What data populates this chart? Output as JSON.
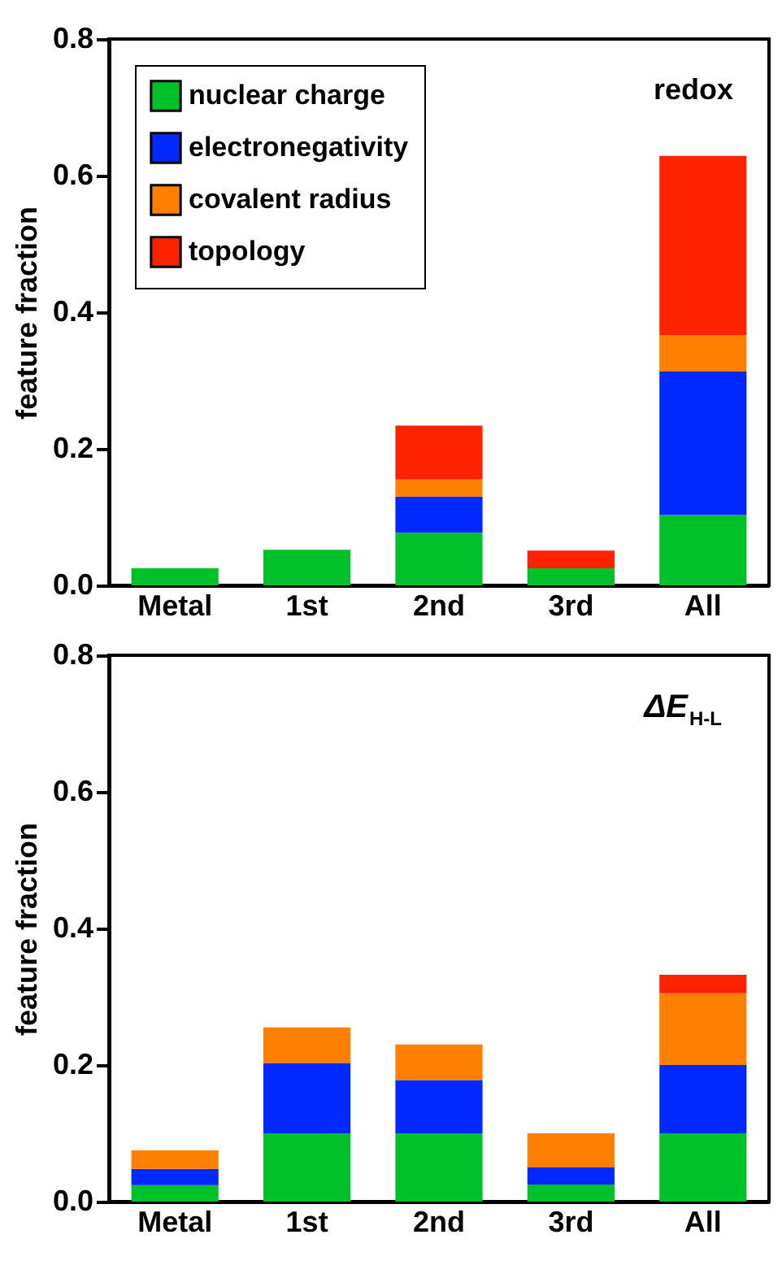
{
  "chart_data": [
    {
      "type": "bar",
      "stacked": true,
      "categories": [
        "Metal",
        "1st",
        "2nd",
        "3rd",
        "All"
      ],
      "ylabel": "feature fraction",
      "annotations": [
        "redox"
      ],
      "ylim": [
        0,
        0.8
      ],
      "yticks": [
        {
          "value": 0,
          "label": "0.0"
        },
        {
          "value": 0.2,
          "label": "0.2"
        },
        {
          "value": 0.4,
          "label": "0.4"
        },
        {
          "value": 0.6,
          "label": "0.6"
        },
        {
          "value": 0.8,
          "label": "0.8"
        }
      ],
      "legend": "top left",
      "series": [
        {
          "name": "nuclear charge",
          "color": "#00c12a",
          "values": [
            0.025,
            0.052,
            0.077,
            0.025,
            0.103
          ]
        },
        {
          "name": "electronegativity",
          "color": "#0029ff",
          "values": [
            0,
            0,
            0.053,
            0,
            0.21
          ]
        },
        {
          "name": "covalent radius",
          "color": "#ff7f00",
          "values": [
            0,
            0,
            0.025,
            0,
            0.053
          ]
        },
        {
          "name": "topology",
          "color": "#ff2200",
          "values": [
            0,
            0,
            0.079,
            0.026,
            0.263
          ]
        }
      ]
    },
    {
      "type": "bar",
      "stacked": true,
      "categories": [
        "Metal",
        "1st",
        "2nd",
        "3rd",
        "All"
      ],
      "ylabel": "feature fraction",
      "annotations": [
        "ΔE$_{H-L}$"
      ],
      "ylim": [
        0,
        0.8
      ],
      "yticks": [
        {
          "value": 0,
          "label": "0.0"
        },
        {
          "value": 0.2,
          "label": "0.2"
        },
        {
          "value": 0.4,
          "label": "0.4"
        },
        {
          "value": 0.6,
          "label": "0.6"
        },
        {
          "value": 0.8,
          "label": "0.8"
        }
      ],
      "series": [
        {
          "color": "#00c12a",
          "values": [
            0.024,
            0.1,
            0.1,
            0.025,
            0.1
          ]
        },
        {
          "color": "#0029ff",
          "values": [
            0.024,
            0.103,
            0.078,
            0.025,
            0.1
          ]
        },
        {
          "color": "#ff7f00",
          "values": [
            0.027,
            0.052,
            0.052,
            0.05,
            0.105
          ]
        },
        {
          "color": "#ff2200",
          "values": [
            0,
            0,
            0,
            0,
            0.027
          ]
        }
      ]
    }
  ]
}
